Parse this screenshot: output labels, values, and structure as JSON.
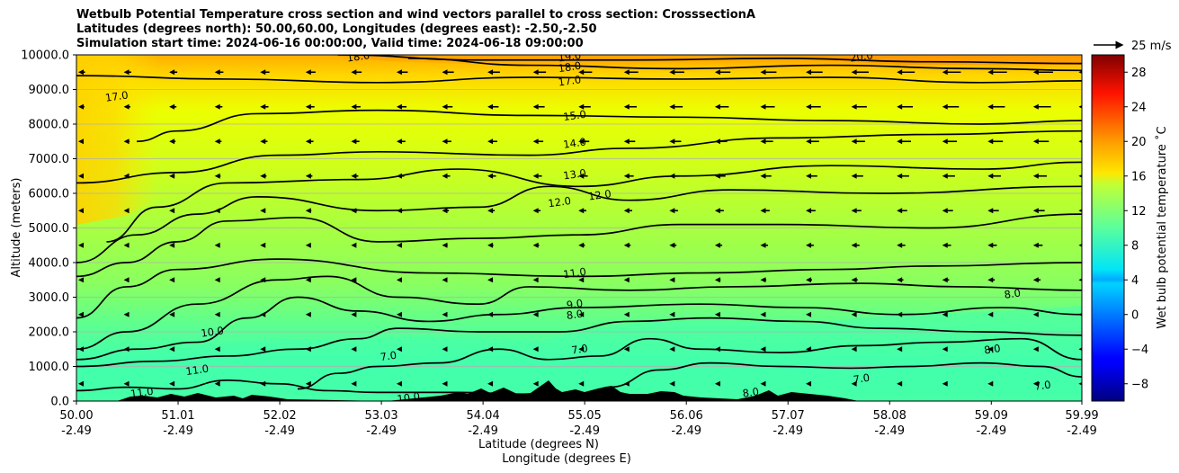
{
  "chart_data": {
    "type": "heatmap",
    "title_lines": [
      "Wetbulb Potential Temperature cross section and wind vectors parallel to cross section: CrosssectionA",
      "Latitudes (degrees north): 50.00,60.00, Longitudes (degrees east): -2.50,-2.50",
      "Simulation start time: 2024-06-16 00:00:00, Valid time: 2024-06-18 09:00:00"
    ],
    "x_ticks": [
      {
        "lat": "50.00",
        "lon": "-2.49"
      },
      {
        "lat": "51.01",
        "lon": "-2.49"
      },
      {
        "lat": "52.02",
        "lon": "-2.49"
      },
      {
        "lat": "53.03",
        "lon": "-2.49"
      },
      {
        "lat": "54.04",
        "lon": "-2.49"
      },
      {
        "lat": "55.05",
        "lon": "-2.49"
      },
      {
        "lat": "56.06",
        "lon": "-2.49"
      },
      {
        "lat": "57.07",
        "lon": "-2.49"
      },
      {
        "lat": "58.08",
        "lon": "-2.49"
      },
      {
        "lat": "59.09",
        "lon": "-2.49"
      },
      {
        "lat": "59.99",
        "lon": "-2.49"
      }
    ],
    "xlabel_1": "Latitude (degrees N)",
    "xlabel_2": "Longitude (degrees E)",
    "ylabel": "Altitude (meters)",
    "y_ticks": [
      "0.0",
      "1000.0",
      "2000.0",
      "3000.0",
      "4000.0",
      "5000.0",
      "6000.0",
      "7000.0",
      "8000.0",
      "9000.0",
      "10000.0"
    ],
    "ylim": [
      0,
      10000
    ],
    "xlim": [
      50.0,
      59.99
    ],
    "grid": "horizontal",
    "colorbar": {
      "label": "Wet bulb potential temperature ˚C",
      "range": [
        -10,
        30
      ],
      "ticks": [
        "−8",
        "−4",
        "0",
        "4",
        "8",
        "12",
        "16",
        "20",
        "24",
        "28"
      ],
      "colormap": "jet"
    },
    "quiver_key": {
      "label": "25 m/s"
    },
    "contour_labels": [
      {
        "text": "19.0",
        "lat": 54.9,
        "alt": 9950
      },
      {
        "text": "18.0",
        "lat": 54.9,
        "alt": 9650
      },
      {
        "text": "17.0",
        "lat": 54.9,
        "alt": 9250
      },
      {
        "text": "15.0",
        "lat": 54.95,
        "alt": 8250
      },
      {
        "text": "14.0",
        "lat": 54.95,
        "alt": 7450
      },
      {
        "text": "13.0",
        "lat": 54.95,
        "alt": 6550
      },
      {
        "text": "12.0",
        "lat": 54.8,
        "alt": 5750
      },
      {
        "text": "12.0",
        "lat": 55.2,
        "alt": 5950
      },
      {
        "text": "11.0",
        "lat": 54.95,
        "alt": 3700
      },
      {
        "text": "9.0",
        "lat": 54.95,
        "alt": 2800
      },
      {
        "text": "8.0",
        "lat": 54.95,
        "alt": 2500
      },
      {
        "text": "17.0",
        "lat": 50.4,
        "alt": 8800
      },
      {
        "text": "10.0",
        "lat": 51.35,
        "alt": 2000
      },
      {
        "text": "11.0",
        "lat": 51.2,
        "alt": 900
      },
      {
        "text": "7.0",
        "lat": 53.1,
        "alt": 1300
      },
      {
        "text": "7.0",
        "lat": 55.0,
        "alt": 1500
      },
      {
        "text": "11.0",
        "lat": 50.65,
        "alt": 250
      },
      {
        "text": "8.0",
        "lat": 59.3,
        "alt": 3100
      },
      {
        "text": "8.0",
        "lat": 59.1,
        "alt": 1500
      },
      {
        "text": "7.0",
        "lat": 59.6,
        "alt": 450
      },
      {
        "text": "7.0",
        "lat": 57.8,
        "alt": 650
      },
      {
        "text": "8.0",
        "lat": 56.7,
        "alt": 250
      },
      {
        "text": "10.0",
        "lat": 53.3,
        "alt": 100
      },
      {
        "text": "20.0",
        "lat": 57.8,
        "alt": 9950
      },
      {
        "text": "18.0",
        "lat": 52.8,
        "alt": 9950
      }
    ],
    "contour_levels": [
      17,
      15,
      14,
      13,
      12,
      11,
      10,
      9,
      8,
      7
    ]
  }
}
